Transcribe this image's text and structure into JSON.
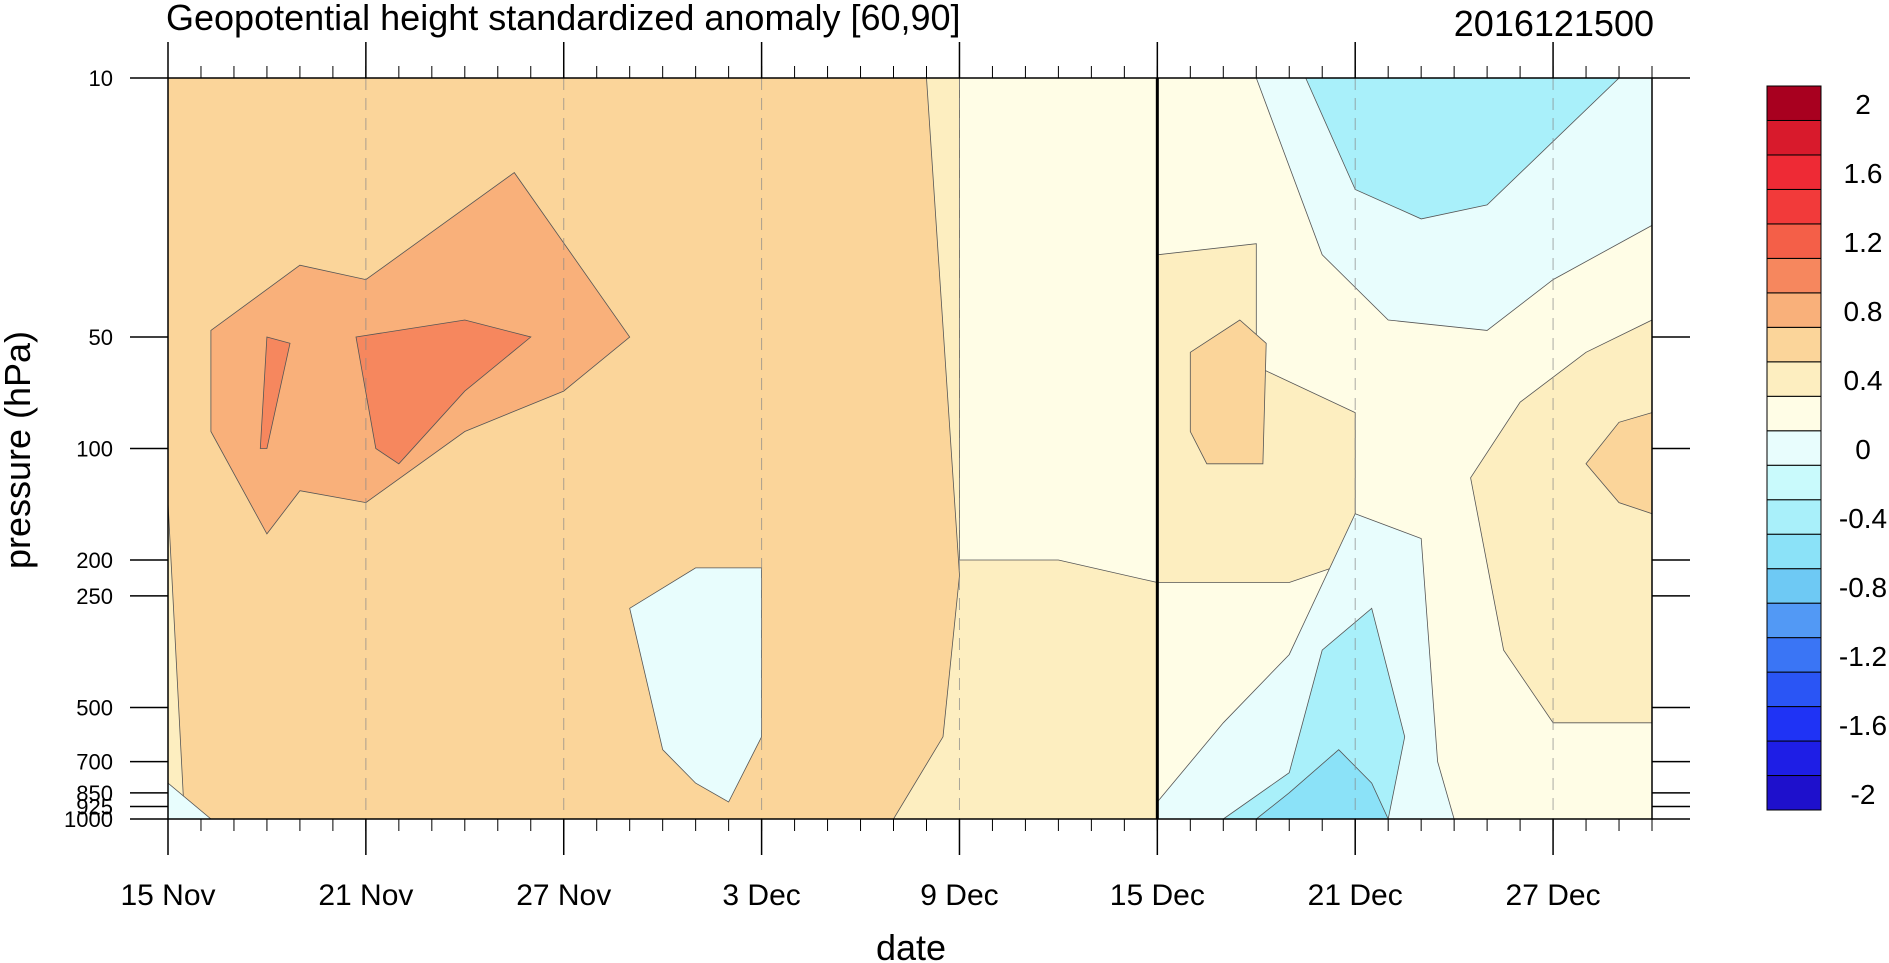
{
  "chart_data": {
    "type": "heatmap",
    "title": "Geopotential height standardized anomaly [60,90]",
    "subtitle": "2016121500",
    "xlabel": "date",
    "ylabel": "pressure (hPa)",
    "x_ticks": [
      {
        "day": 0,
        "label": "15 Nov"
      },
      {
        "day": 6,
        "label": "21 Nov"
      },
      {
        "day": 12,
        "label": "27 Nov"
      },
      {
        "day": 18,
        "label": "3 Dec"
      },
      {
        "day": 24,
        "label": "9 Dec"
      },
      {
        "day": 30,
        "label": "15 Dec"
      },
      {
        "day": 36,
        "label": "21 Dec"
      },
      {
        "day": 42,
        "label": "27 Dec"
      }
    ],
    "x_range_days": [
      0,
      45
    ],
    "x_start_date": "15 Nov",
    "current_date_marker": "15 Dec",
    "y_ticks": [
      {
        "p": 10,
        "label": "10"
      },
      {
        "p": 50,
        "label": "50"
      },
      {
        "p": 100,
        "label": "100"
      },
      {
        "p": 200,
        "label": "200"
      },
      {
        "p": 250,
        "label": "250"
      },
      {
        "p": 500,
        "label": "500"
      },
      {
        "p": 700,
        "label": "700"
      },
      {
        "p": 850,
        "label": "850"
      },
      {
        "p": 925,
        "label": "925"
      },
      {
        "p": 1000,
        "label": "1000"
      }
    ],
    "y_scale": "log",
    "y_reversed": true,
    "colorbar": {
      "colors": [
        "#1e10cc",
        "#1e1ee6",
        "#1f33f5",
        "#2a55f5",
        "#3a75f5",
        "#5299f5",
        "#6ec9f4",
        "#8be2f8",
        "#a9f0fa",
        "#c9fafc",
        "#e8fdfd",
        "#fffde6",
        "#fdeec0",
        "#fbd59a",
        "#f9b07a",
        "#f6875e",
        "#f45f48",
        "#f23a3a",
        "#ee2a35",
        "#d81a2c",
        "#a8001f"
      ],
      "labels": [
        {
          "index": 1,
          "text": "-2"
        },
        {
          "index": 3,
          "text": "-1.6"
        },
        {
          "index": 5,
          "text": "-1.2"
        },
        {
          "index": 7,
          "text": "-0.8"
        },
        {
          "index": 9,
          "text": "-0.4"
        },
        {
          "index": 11,
          "text": "0"
        },
        {
          "index": 13,
          "text": "0.4"
        },
        {
          "index": 15,
          "text": "0.8"
        },
        {
          "index": 17,
          "text": "1.2"
        },
        {
          "index": 19,
          "text": "1.6"
        },
        {
          "index": 21,
          "text": "2"
        }
      ]
    },
    "anomaly_regions": [
      {
        "level": "0.4",
        "color": "#fdeec0",
        "points": [
          [
            0,
            1000
          ],
          [
            0,
            10
          ],
          [
            24,
            10
          ],
          [
            24,
            200
          ],
          [
            27,
            200
          ],
          [
            30,
            230
          ],
          [
            30,
            1000
          ]
        ]
      },
      {
        "level": "0.8",
        "color": "#fbd59a",
        "points": [
          [
            0,
            140
          ],
          [
            0,
            10
          ],
          [
            23,
            10
          ],
          [
            24,
            220
          ],
          [
            23.5,
            600
          ],
          [
            22,
            1000
          ],
          [
            0.5,
            1000
          ]
        ]
      },
      {
        "level": "1.2",
        "color": "#f9b07a",
        "points": [
          [
            1.3,
            48
          ],
          [
            4,
            32
          ],
          [
            6,
            35
          ],
          [
            10.5,
            18
          ],
          [
            14,
            50
          ],
          [
            12,
            70
          ],
          [
            9,
            90
          ],
          [
            6,
            140
          ],
          [
            4,
            130
          ],
          [
            3,
            170
          ],
          [
            1.3,
            90
          ]
        ]
      },
      {
        "level": "1.6",
        "color": "#f6875e",
        "points": [
          [
            5.7,
            50
          ],
          [
            9,
            45
          ],
          [
            11,
            50
          ],
          [
            9,
            70
          ],
          [
            7,
            110
          ],
          [
            6.3,
            100
          ]
        ]
      },
      {
        "level": "1.6",
        "color": "#f6875e",
        "points": [
          [
            3,
            50
          ],
          [
            3.7,
            52
          ],
          [
            3,
            100
          ],
          [
            2.8,
            100
          ]
        ]
      },
      {
        "level": "0.4",
        "color": "#fdeec0",
        "points": [
          [
            30,
            30
          ],
          [
            33,
            28
          ],
          [
            33,
            60
          ],
          [
            36,
            80
          ],
          [
            36,
            200
          ],
          [
            34,
            230
          ],
          [
            30,
            230
          ]
        ]
      },
      {
        "level": "0.8",
        "color": "#fbd59a",
        "points": [
          [
            31,
            55
          ],
          [
            32.5,
            45
          ],
          [
            33.3,
            52
          ],
          [
            33.2,
            110
          ],
          [
            31.5,
            110
          ],
          [
            31,
            90
          ]
        ]
      },
      {
        "level": "0.4",
        "color": "#fdeec0",
        "points": [
          [
            45,
            45
          ],
          [
            43,
            55
          ],
          [
            41,
            75
          ],
          [
            39.5,
            120
          ],
          [
            40.5,
            350
          ],
          [
            42,
            550
          ],
          [
            45,
            550
          ]
        ]
      },
      {
        "level": "0.8",
        "color": "#fbd59a",
        "points": [
          [
            45,
            80
          ],
          [
            44,
            85
          ],
          [
            43,
            110
          ],
          [
            44,
            140
          ],
          [
            45,
            150
          ]
        ]
      },
      {
        "level": "0",
        "color": "#e8fdfd",
        "points": [
          [
            33,
            10
          ],
          [
            35,
            30
          ],
          [
            37,
            45
          ],
          [
            40,
            48
          ],
          [
            42,
            35
          ],
          [
            45,
            25
          ],
          [
            45,
            10
          ]
        ]
      },
      {
        "level": "-0.4",
        "color": "#a9f0fa",
        "points": [
          [
            34.5,
            10
          ],
          [
            36,
            20
          ],
          [
            38,
            24
          ],
          [
            40,
            22
          ],
          [
            44,
            10
          ]
        ]
      },
      {
        "level": "0",
        "color": "#e8fdfd",
        "points": [
          [
            30,
            900
          ],
          [
            32,
            550
          ],
          [
            34,
            360
          ],
          [
            36,
            150
          ],
          [
            38,
            175
          ],
          [
            38.5,
            700
          ],
          [
            39,
            1000
          ],
          [
            30,
            1000
          ]
        ]
      },
      {
        "level": "-0.4",
        "color": "#a9f0fa",
        "points": [
          [
            32,
            1000
          ],
          [
            34,
            750
          ],
          [
            35,
            350
          ],
          [
            36.5,
            270
          ],
          [
            37.5,
            600
          ],
          [
            37,
            1000
          ]
        ]
      },
      {
        "level": "-0.8",
        "color": "#8be2f8",
        "points": [
          [
            33,
            1000
          ],
          [
            34,
            850
          ],
          [
            35.5,
            650
          ],
          [
            36.5,
            800
          ],
          [
            37,
            1000
          ]
        ]
      },
      {
        "level": "0",
        "color": "#e8fdfd",
        "points": [
          [
            14,
            270
          ],
          [
            16,
            210
          ],
          [
            18,
            210
          ],
          [
            18,
            600
          ],
          [
            17,
            900
          ],
          [
            16,
            800
          ],
          [
            15,
            650
          ]
        ]
      },
      {
        "level": "0",
        "color": "#e8fdfd",
        "points": [
          [
            0,
            1000
          ],
          [
            0,
            800
          ],
          [
            1.3,
            1000
          ]
        ]
      }
    ]
  }
}
